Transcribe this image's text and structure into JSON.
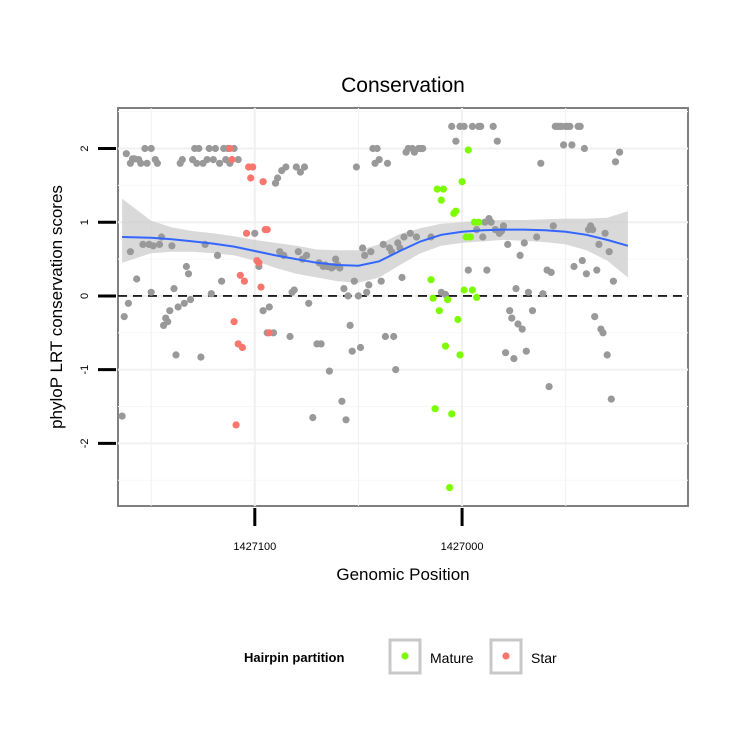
{
  "chart_data": {
    "type": "scatter",
    "title": "Conservation",
    "xlabel": "Genomic Position",
    "ylabel": "phyloP LRT conservation scores",
    "x_reversed": true,
    "xlim": [
      1427166,
      1426891
    ],
    "ylim": [
      -2.85,
      2.55
    ],
    "grid": true,
    "x_ticks": [
      {
        "value": 1427100,
        "label": "1427100"
      },
      {
        "value": 1427000,
        "label": "1427000"
      }
    ],
    "y_ticks": [
      {
        "value": 2,
        "label": "2"
      },
      {
        "value": 1,
        "label": "1"
      },
      {
        "value": 0,
        "label": "0"
      },
      {
        "value": -1,
        "label": "-1"
      },
      {
        "value": -2,
        "label": "-2"
      }
    ],
    "reference_line": {
      "y": 0,
      "style": "dashed",
      "color": "#000000"
    },
    "legend": {
      "title": "Hairpin partition",
      "placement": "bottom",
      "entries": [
        {
          "label": "Mature",
          "color": "#7CFC00"
        },
        {
          "label": "Star",
          "color": "#F8766D"
        }
      ]
    },
    "colors": {
      "other": "#999999",
      "Mature": "#7CFC00",
      "Star": "#F8766D",
      "smooth": "#3366FF",
      "ribbon": "#CCCCCC"
    },
    "series": [
      {
        "group": "other",
        "points": [
          [
            1427164,
            -1.63
          ],
          [
            1427163,
            -0.28
          ],
          [
            1427162,
            1.93
          ],
          [
            1427161,
            -0.1
          ],
          [
            1427160,
            1.8
          ],
          [
            1427160,
            0.6
          ],
          [
            1427159,
            1.86
          ],
          [
            1427158,
            1.86
          ],
          [
            1427157,
            0.23
          ],
          [
            1427156,
            1.85
          ],
          [
            1427155,
            1.8
          ],
          [
            1427154,
            0.7
          ],
          [
            1427153,
            2.0
          ],
          [
            1427152,
            1.8
          ],
          [
            1427151,
            0.7
          ],
          [
            1427150,
            0.05
          ],
          [
            1427150,
            2.0
          ],
          [
            1427149,
            0.68
          ],
          [
            1427148,
            1.85
          ],
          [
            1427147,
            1.8
          ],
          [
            1427146,
            0.7
          ],
          [
            1427145,
            0.8
          ],
          [
            1427144,
            -0.4
          ],
          [
            1427143,
            -0.3
          ],
          [
            1427142,
            -0.35
          ],
          [
            1427141,
            -0.2
          ],
          [
            1427140,
            0.68
          ],
          [
            1427139,
            0.1
          ],
          [
            1427138,
            -0.8
          ],
          [
            1427137,
            -0.15
          ],
          [
            1427136,
            1.8
          ],
          [
            1427135,
            1.85
          ],
          [
            1427134,
            -0.1
          ],
          [
            1427133,
            0.4
          ],
          [
            1427132,
            0.3
          ],
          [
            1427131,
            -0.05
          ],
          [
            1427130,
            1.85
          ],
          [
            1427129,
            2.0
          ],
          [
            1427128,
            1.8
          ],
          [
            1427127,
            2.0
          ],
          [
            1427126,
            -0.83
          ],
          [
            1427125,
            1.8
          ],
          [
            1427124,
            0.7
          ],
          [
            1427123,
            1.85
          ],
          [
            1427122,
            2.0
          ],
          [
            1427121,
            0.03
          ],
          [
            1427120,
            1.85
          ],
          [
            1427119,
            2.0
          ],
          [
            1427118,
            0.55
          ],
          [
            1427117,
            1.8
          ],
          [
            1427116,
            0.2
          ],
          [
            1427115,
            2.0
          ],
          [
            1427114,
            1.85
          ],
          [
            1427113,
            2.0
          ],
          [
            1427112,
            1.8
          ],
          [
            1427110,
            2.0
          ],
          [
            1427108,
            1.85
          ],
          [
            1427100,
            0.85
          ],
          [
            1427098,
            0.4
          ],
          [
            1427096,
            -0.2
          ],
          [
            1427094,
            -0.5
          ],
          [
            1427093,
            -0.15
          ],
          [
            1427091,
            -0.5
          ],
          [
            1427090,
            1.53
          ],
          [
            1427089,
            1.6
          ],
          [
            1427088,
            0.6
          ],
          [
            1427087,
            1.7
          ],
          [
            1427086,
            0.55
          ],
          [
            1427085,
            1.75
          ],
          [
            1427083,
            -0.55
          ],
          [
            1427082,
            0.05
          ],
          [
            1427081,
            0.08
          ],
          [
            1427080,
            1.75
          ],
          [
            1427079,
            0.6
          ],
          [
            1427078,
            1.68
          ],
          [
            1427077,
            0.5
          ],
          [
            1427076,
            1.75
          ],
          [
            1427075,
            0.55
          ],
          [
            1427074,
            -0.1
          ],
          [
            1427072,
            -1.65
          ],
          [
            1427070,
            -0.65
          ],
          [
            1427069,
            0.45
          ],
          [
            1427068,
            -0.65
          ],
          [
            1427067,
            0.4
          ],
          [
            1427066,
            0.42
          ],
          [
            1427065,
            0.4
          ],
          [
            1427064,
            -1.02
          ],
          [
            1427063,
            0.38
          ],
          [
            1427062,
            0.4
          ],
          [
            1427061,
            0.5
          ],
          [
            1427060,
            0.42
          ],
          [
            1427059,
            0.38
          ],
          [
            1427058,
            -1.43
          ],
          [
            1427057,
            0.1
          ],
          [
            1427056,
            -1.68
          ],
          [
            1427055,
            0.0
          ],
          [
            1427054,
            -0.4
          ],
          [
            1427053,
            -0.75
          ],
          [
            1427052,
            0.2
          ],
          [
            1427051,
            1.75
          ],
          [
            1427050,
            0.0
          ],
          [
            1427049,
            -0.7
          ],
          [
            1427048,
            0.65
          ],
          [
            1427047,
            0.55
          ],
          [
            1427046,
            0.05
          ],
          [
            1427045,
            0.15
          ],
          [
            1427044,
            0.6
          ],
          [
            1427043,
            2.0
          ],
          [
            1427042,
            1.8
          ],
          [
            1427041,
            2.0
          ],
          [
            1427040,
            1.85
          ],
          [
            1427039,
            0.2
          ],
          [
            1427038,
            0.7
          ],
          [
            1427037,
            -0.55
          ],
          [
            1427036,
            1.8
          ],
          [
            1427035,
            0.65
          ],
          [
            1427034,
            0.6
          ],
          [
            1427033,
            -0.55
          ],
          [
            1427032,
            -1.0
          ],
          [
            1427031,
            0.72
          ],
          [
            1427030,
            0.65
          ],
          [
            1427029,
            0.25
          ],
          [
            1427028,
            0.8
          ],
          [
            1427027,
            1.95
          ],
          [
            1427026,
            2.0
          ],
          [
            1427025,
            0.85
          ],
          [
            1427024,
            2.0
          ],
          [
            1427023,
            1.95
          ],
          [
            1427022,
            0.8
          ],
          [
            1427021,
            2.0
          ],
          [
            1427020,
            2.0
          ],
          [
            1427019,
            2.0
          ],
          [
            1427015,
            0.8
          ],
          [
            1427010,
            0.05
          ],
          [
            1427008,
            0.02
          ],
          [
            1427005,
            2.3
          ],
          [
            1427003,
            2.1
          ],
          [
            1427001,
            2.3
          ],
          [
            1426999,
            2.3
          ],
          [
            1426997,
            0.35
          ],
          [
            1426995,
            2.3
          ],
          [
            1426993,
            0.9
          ],
          [
            1426992,
            2.3
          ],
          [
            1426991,
            2.3
          ],
          [
            1426990,
            0.8
          ],
          [
            1426989,
            1.0
          ],
          [
            1426988,
            0.35
          ],
          [
            1426987,
            1.05
          ],
          [
            1426986,
            1.0
          ],
          [
            1426985,
            2.3
          ],
          [
            1426984,
            0.9
          ],
          [
            1426983,
            2.1
          ],
          [
            1426982,
            0.85
          ],
          [
            1426981,
            0.88
          ],
          [
            1426980,
            0.95
          ],
          [
            1426979,
            -0.77
          ],
          [
            1426978,
            0.7
          ],
          [
            1426977,
            -0.2
          ],
          [
            1426976,
            -0.3
          ],
          [
            1426975,
            -0.85
          ],
          [
            1426974,
            0.1
          ],
          [
            1426973,
            -0.38
          ],
          [
            1426972,
            0.55
          ],
          [
            1426971,
            -0.45
          ],
          [
            1426970,
            0.72
          ],
          [
            1426969,
            -0.75
          ],
          [
            1426968,
            0.05
          ],
          [
            1426966,
            -0.2
          ],
          [
            1426964,
            0.8
          ],
          [
            1426962,
            1.8
          ],
          [
            1426961,
            0.03
          ],
          [
            1426959,
            0.35
          ],
          [
            1426958,
            -1.23
          ],
          [
            1426957,
            0.32
          ],
          [
            1426956,
            0.95
          ],
          [
            1426955,
            2.3
          ],
          [
            1426954,
            2.3
          ],
          [
            1426953,
            2.3
          ],
          [
            1426952,
            2.3
          ],
          [
            1426951,
            2.05
          ],
          [
            1426950,
            2.3
          ],
          [
            1426949,
            2.3
          ],
          [
            1426948,
            2.3
          ],
          [
            1426947,
            2.05
          ],
          [
            1426946,
            0.4
          ],
          [
            1426944,
            2.3
          ],
          [
            1426943,
            2.3
          ],
          [
            1426942,
            0.48
          ],
          [
            1426941,
            2.0
          ],
          [
            1426940,
            0.3
          ],
          [
            1426939,
            0.9
          ],
          [
            1426938,
            0.95
          ],
          [
            1426937,
            0.9
          ],
          [
            1426936,
            -0.28
          ],
          [
            1426935,
            0.35
          ],
          [
            1426934,
            0.7
          ],
          [
            1426933,
            -0.45
          ],
          [
            1426932,
            -0.5
          ],
          [
            1426931,
            0.85
          ],
          [
            1426930,
            -0.8
          ],
          [
            1426929,
            0.6
          ],
          [
            1426928,
            -1.4
          ],
          [
            1426927,
            0.2
          ],
          [
            1426926,
            1.82
          ],
          [
            1426924,
            1.95
          ]
        ]
      },
      {
        "group": "Star",
        "name": "Star",
        "points": [
          [
            1427112,
            2.0
          ],
          [
            1427111,
            1.85
          ],
          [
            1427110,
            -0.35
          ],
          [
            1427109,
            -1.75
          ],
          [
            1427108,
            -0.65
          ],
          [
            1427107,
            0.28
          ],
          [
            1427106,
            -0.7
          ],
          [
            1427105,
            0.2
          ],
          [
            1427104,
            0.85
          ],
          [
            1427103,
            1.75
          ],
          [
            1427102,
            1.6
          ],
          [
            1427101,
            1.75
          ],
          [
            1427099,
            0.48
          ],
          [
            1427098,
            0.45
          ],
          [
            1427097,
            0.12
          ],
          [
            1427096,
            1.55
          ],
          [
            1427095,
            0.9
          ],
          [
            1427094,
            0.9
          ],
          [
            1427093,
            -0.5
          ]
        ]
      },
      {
        "group": "Mature",
        "name": "Mature",
        "points": [
          [
            1427015,
            0.22
          ],
          [
            1427014,
            -0.03
          ],
          [
            1427013,
            -1.53
          ],
          [
            1427012,
            1.45
          ],
          [
            1427011,
            -0.2
          ],
          [
            1427010,
            1.3
          ],
          [
            1427009,
            1.45
          ],
          [
            1427008,
            -0.68
          ],
          [
            1427007,
            -0.05
          ],
          [
            1427006,
            -2.6
          ],
          [
            1427005,
            -1.6
          ],
          [
            1427004,
            1.12
          ],
          [
            1427003,
            1.15
          ],
          [
            1427002,
            -0.32
          ],
          [
            1427001,
            -0.8
          ],
          [
            1427000,
            1.55
          ],
          [
            1426999,
            0.08
          ],
          [
            1426998,
            0.8
          ],
          [
            1426997,
            1.98
          ],
          [
            1426996,
            0.8
          ],
          [
            1426995,
            0.08
          ],
          [
            1426994,
            1.0
          ],
          [
            1426993,
            -0.02
          ],
          [
            1426992,
            1.0
          ]
        ]
      }
    ],
    "smooth_fit": {
      "x": [
        1427164,
        1427150,
        1427140,
        1427130,
        1427120,
        1427110,
        1427100,
        1427090,
        1427080,
        1427070,
        1427060,
        1427050,
        1427040,
        1427030,
        1427020,
        1427010,
        1427000,
        1426990,
        1426980,
        1426970,
        1426960,
        1426950,
        1426940,
        1426930,
        1426920
      ],
      "y": [
        0.8,
        0.79,
        0.77,
        0.74,
        0.71,
        0.67,
        0.61,
        0.55,
        0.5,
        0.45,
        0.42,
        0.41,
        0.47,
        0.61,
        0.74,
        0.83,
        0.87,
        0.89,
        0.9,
        0.9,
        0.89,
        0.87,
        0.83,
        0.76,
        0.68
      ],
      "ci_low": [
        0.45,
        0.58,
        0.6,
        0.6,
        0.58,
        0.55,
        0.48,
        0.38,
        0.3,
        0.25,
        0.2,
        0.18,
        0.25,
        0.42,
        0.58,
        0.68,
        0.72,
        0.74,
        0.76,
        0.75,
        0.73,
        0.7,
        0.62,
        0.48,
        0.25
      ],
      "ci_high": [
        1.32,
        1.02,
        0.93,
        0.88,
        0.85,
        0.81,
        0.76,
        0.72,
        0.68,
        0.63,
        0.62,
        0.62,
        0.7,
        0.84,
        0.92,
        0.98,
        1.0,
        1.02,
        1.03,
        1.03,
        1.04,
        1.05,
        1.05,
        1.06,
        1.15
      ]
    }
  }
}
